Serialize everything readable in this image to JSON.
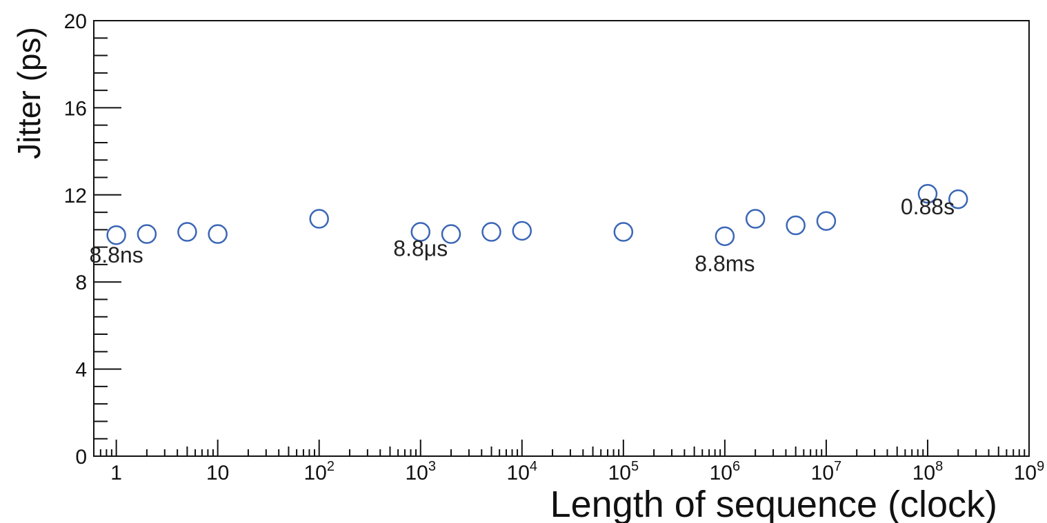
{
  "chart_data": {
    "type": "scatter",
    "xlabel": "Length of sequence (clock)",
    "ylabel": "Jitter (ps)",
    "x_scale": "log",
    "xlim": [
      0.6,
      1000000000
    ],
    "ylim": [
      0,
      20
    ],
    "grid": false,
    "marker": {
      "shape": "open-circle",
      "color": "#3a66b6"
    },
    "y_ticks": [
      "0",
      "4",
      "8",
      "12",
      "16",
      "20"
    ],
    "x_ticks": [
      {
        "base": "1",
        "exp": ""
      },
      {
        "base": "10",
        "exp": ""
      },
      {
        "base": "10",
        "exp": "2"
      },
      {
        "base": "10",
        "exp": "3"
      },
      {
        "base": "10",
        "exp": "4"
      },
      {
        "base": "10",
        "exp": "5"
      },
      {
        "base": "10",
        "exp": "6"
      },
      {
        "base": "10",
        "exp": "7"
      },
      {
        "base": "10",
        "exp": "8"
      },
      {
        "base": "10",
        "exp": "9"
      }
    ],
    "points": [
      {
        "x": 1,
        "y": 10.15
      },
      {
        "x": 2,
        "y": 10.2
      },
      {
        "x": 5,
        "y": 10.3
      },
      {
        "x": 10,
        "y": 10.2
      },
      {
        "x": 100,
        "y": 10.9
      },
      {
        "x": 1000,
        "y": 10.3
      },
      {
        "x": 2000,
        "y": 10.2
      },
      {
        "x": 5000,
        "y": 10.3
      },
      {
        "x": 10000,
        "y": 10.35
      },
      {
        "x": 100000,
        "y": 10.3
      },
      {
        "x": 1000000,
        "y": 10.1
      },
      {
        "x": 2000000,
        "y": 10.9
      },
      {
        "x": 5000000,
        "y": 10.6
      },
      {
        "x": 10000000,
        "y": 10.8
      },
      {
        "x": 100000000,
        "y": 12.05
      },
      {
        "x": 200000000,
        "y": 11.8
      }
    ],
    "annotations": [
      {
        "text": "8.8ns",
        "x": 1,
        "y": 8.9
      },
      {
        "text": "8.8μs",
        "x": 1000,
        "y": 9.2
      },
      {
        "text": "8.8ms",
        "x": 1000000,
        "y": 8.5
      },
      {
        "text": "0.88s",
        "x": 100000000,
        "y": 11.1
      }
    ]
  }
}
